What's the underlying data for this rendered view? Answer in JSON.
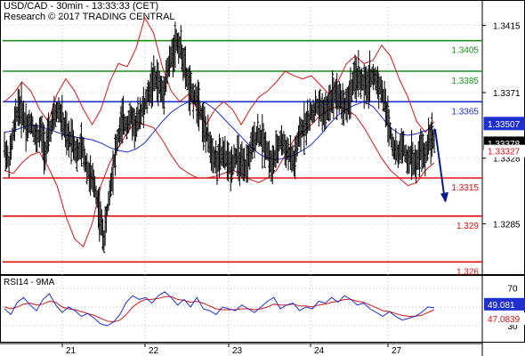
{
  "header": {
    "line1": "USD/CAD - 30min - 13:33:33 (CET)",
    "line2": "Research © 2017 TRADING CENTRAL"
  },
  "chart_data": {
    "type": "line",
    "price_panel": {
      "ylim": [
        1.3252,
        1.3427
      ],
      "ticks": [
        "1.3415",
        "1.3371",
        "1.3328",
        "1.3285"
      ],
      "levels": [
        {
          "value": 1.3405,
          "label": "1.3405",
          "color": "#1a8f1a"
        },
        {
          "value": 1.3385,
          "label": "1.3385",
          "color": "#1a8f1a"
        },
        {
          "value": 1.3365,
          "label": "1.3365",
          "color": "#1e2fd0"
        },
        {
          "value": 1.3315,
          "label": "1.3315",
          "color": "#e01010"
        },
        {
          "value": 1.329,
          "label": "1.329",
          "color": "#e01010"
        },
        {
          "value": 1.326,
          "label": "1.326",
          "color": "#e01010"
        }
      ],
      "current_tags": [
        {
          "value": 1.33507,
          "label": "1.33507",
          "bg": "#1e2fd0",
          "fg": "#ffffff"
        },
        {
          "value": 1.33378,
          "label": "1.33378",
          "bg": "#000000",
          "fg": "#ffffff"
        },
        {
          "value": 1.33327,
          "label": "1.33327",
          "bg": "#ffffff",
          "fg": "#e01010"
        }
      ],
      "close_path": [
        1.3335,
        1.3325,
        1.3345,
        1.3362,
        1.3358,
        1.3348,
        1.3352,
        1.334,
        1.3346,
        1.3333,
        1.3345,
        1.3355,
        1.336,
        1.335,
        1.334,
        1.3342,
        1.333,
        1.3336,
        1.3325,
        1.3315,
        1.331,
        1.3292,
        1.3275,
        1.33,
        1.3322,
        1.334,
        1.3352,
        1.335,
        1.3355,
        1.3348,
        1.3358,
        1.3362,
        1.3372,
        1.338,
        1.3378,
        1.337,
        1.3385,
        1.3395,
        1.3405,
        1.34,
        1.3385,
        1.3372,
        1.3368,
        1.3365,
        1.335,
        1.334,
        1.3332,
        1.3325,
        1.333,
        1.3328,
        1.3322,
        1.333,
        1.3325,
        1.332,
        1.3328,
        1.3338,
        1.3345,
        1.334,
        1.3335,
        1.3322,
        1.333,
        1.334,
        1.3335,
        1.333,
        1.3325,
        1.334,
        1.3348,
        1.3352,
        1.3358,
        1.3362,
        1.336,
        1.3357,
        1.3366,
        1.3372,
        1.3368,
        1.3362,
        1.3365,
        1.3376,
        1.3382,
        1.3378,
        1.3374,
        1.3382,
        1.338,
        1.3375,
        1.3365,
        1.335,
        1.3335,
        1.333,
        1.3338,
        1.3325,
        1.333,
        1.3322,
        1.3335,
        1.3328,
        1.3345,
        1.3338
      ],
      "ma_path": [
        1.3345,
        1.3346,
        1.3348,
        1.335,
        1.3349,
        1.3347,
        1.3345,
        1.3343,
        1.3342,
        1.3341,
        1.334,
        1.3338,
        1.3335,
        1.3333,
        1.3332,
        1.3334,
        1.3338,
        1.3345,
        1.3352,
        1.3358,
        1.3362,
        1.3365,
        1.3366,
        1.3364,
        1.336,
        1.3354,
        1.3348,
        1.3342,
        1.3336,
        1.3331,
        1.3328,
        1.3327,
        1.3328,
        1.333,
        1.3333,
        1.3337,
        1.3343,
        1.335,
        1.3356,
        1.336,
        1.3363,
        1.3365,
        1.3362,
        1.3355,
        1.3348,
        1.3344,
        1.3343,
        1.3344,
        1.3346,
        1.3349
      ],
      "upper_band": [
        1.3365,
        1.337,
        1.3378,
        1.3372,
        1.336,
        1.3352,
        1.337,
        1.338,
        1.3372,
        1.336,
        1.335,
        1.336,
        1.3378,
        1.339,
        1.3388,
        1.34,
        1.342,
        1.341,
        1.3388,
        1.3372,
        1.3365,
        1.337,
        1.336,
        1.335,
        1.336,
        1.3365,
        1.336,
        1.335,
        1.336,
        1.3368,
        1.3372,
        1.3378,
        1.3385,
        1.3382,
        1.338,
        1.3382,
        1.3376,
        1.337,
        1.3378,
        1.339,
        1.3395,
        1.339,
        1.3392,
        1.3402,
        1.3395,
        1.338,
        1.3368,
        1.3352,
        1.3345,
        1.3352
      ],
      "lower_band": [
        1.332,
        1.3318,
        1.3325,
        1.333,
        1.3332,
        1.3322,
        1.331,
        1.329,
        1.3275,
        1.327,
        1.3285,
        1.331,
        1.3325,
        1.3335,
        1.3345,
        1.3352,
        1.335,
        1.3348,
        1.334,
        1.333,
        1.3322,
        1.3318,
        1.3315,
        1.3315,
        1.3316,
        1.3318,
        1.332,
        1.3318,
        1.3314,
        1.3312,
        1.3315,
        1.332,
        1.333,
        1.334,
        1.3345,
        1.335,
        1.3356,
        1.336,
        1.3362,
        1.336,
        1.3356,
        1.3348,
        1.3338,
        1.3328,
        1.332,
        1.3315,
        1.331,
        1.3312,
        1.332,
        1.3325
      ],
      "forecast_arrow": {
        "from": 1.3347,
        "to": 1.33
      }
    },
    "rsi_panel": {
      "label": "RSI14 - 9MA",
      "ticks": [
        "70",
        "30"
      ],
      "levels": [
        70,
        50,
        30
      ],
      "current_tags": [
        {
          "value": 49.081,
          "label": "49.081",
          "bg": "#1e2fd0",
          "fg": "#ffffff"
        },
        {
          "value": 47.0839,
          "label": "47.0839",
          "bg": "#ffffff",
          "fg": "#e01010"
        }
      ],
      "rsi": [
        48,
        42,
        55,
        60,
        52,
        46,
        58,
        64,
        52,
        44,
        50,
        46,
        40,
        43,
        38,
        32,
        30,
        34,
        42,
        55,
        62,
        58,
        60,
        54,
        62,
        66,
        60,
        52,
        58,
        50,
        60,
        48,
        46,
        42,
        50,
        48,
        46,
        52,
        48,
        44,
        50,
        56,
        60,
        48,
        52,
        54,
        46,
        50,
        48,
        56,
        54,
        60,
        55,
        62,
        58,
        52,
        54,
        48,
        44,
        40,
        45,
        40,
        36,
        38,
        40,
        44,
        50,
        49
      ],
      "ma": [
        50,
        48,
        50,
        53,
        54,
        52,
        53,
        56,
        55,
        50,
        48,
        47,
        45,
        43,
        41,
        38,
        35,
        34,
        36,
        42,
        50,
        55,
        58,
        58,
        59,
        61,
        61,
        58,
        57,
        55,
        56,
        54,
        51,
        48,
        47,
        47,
        47,
        48,
        48,
        47,
        48,
        50,
        53,
        52,
        52,
        53,
        51,
        51,
        50,
        52,
        53,
        55,
        56,
        58,
        58,
        56,
        55,
        52,
        49,
        46,
        45,
        43,
        41,
        40,
        40,
        41,
        44,
        47
      ]
    },
    "x_axis": {
      "labels": [
        "21",
        "22",
        "23",
        "24",
        "27"
      ]
    }
  }
}
